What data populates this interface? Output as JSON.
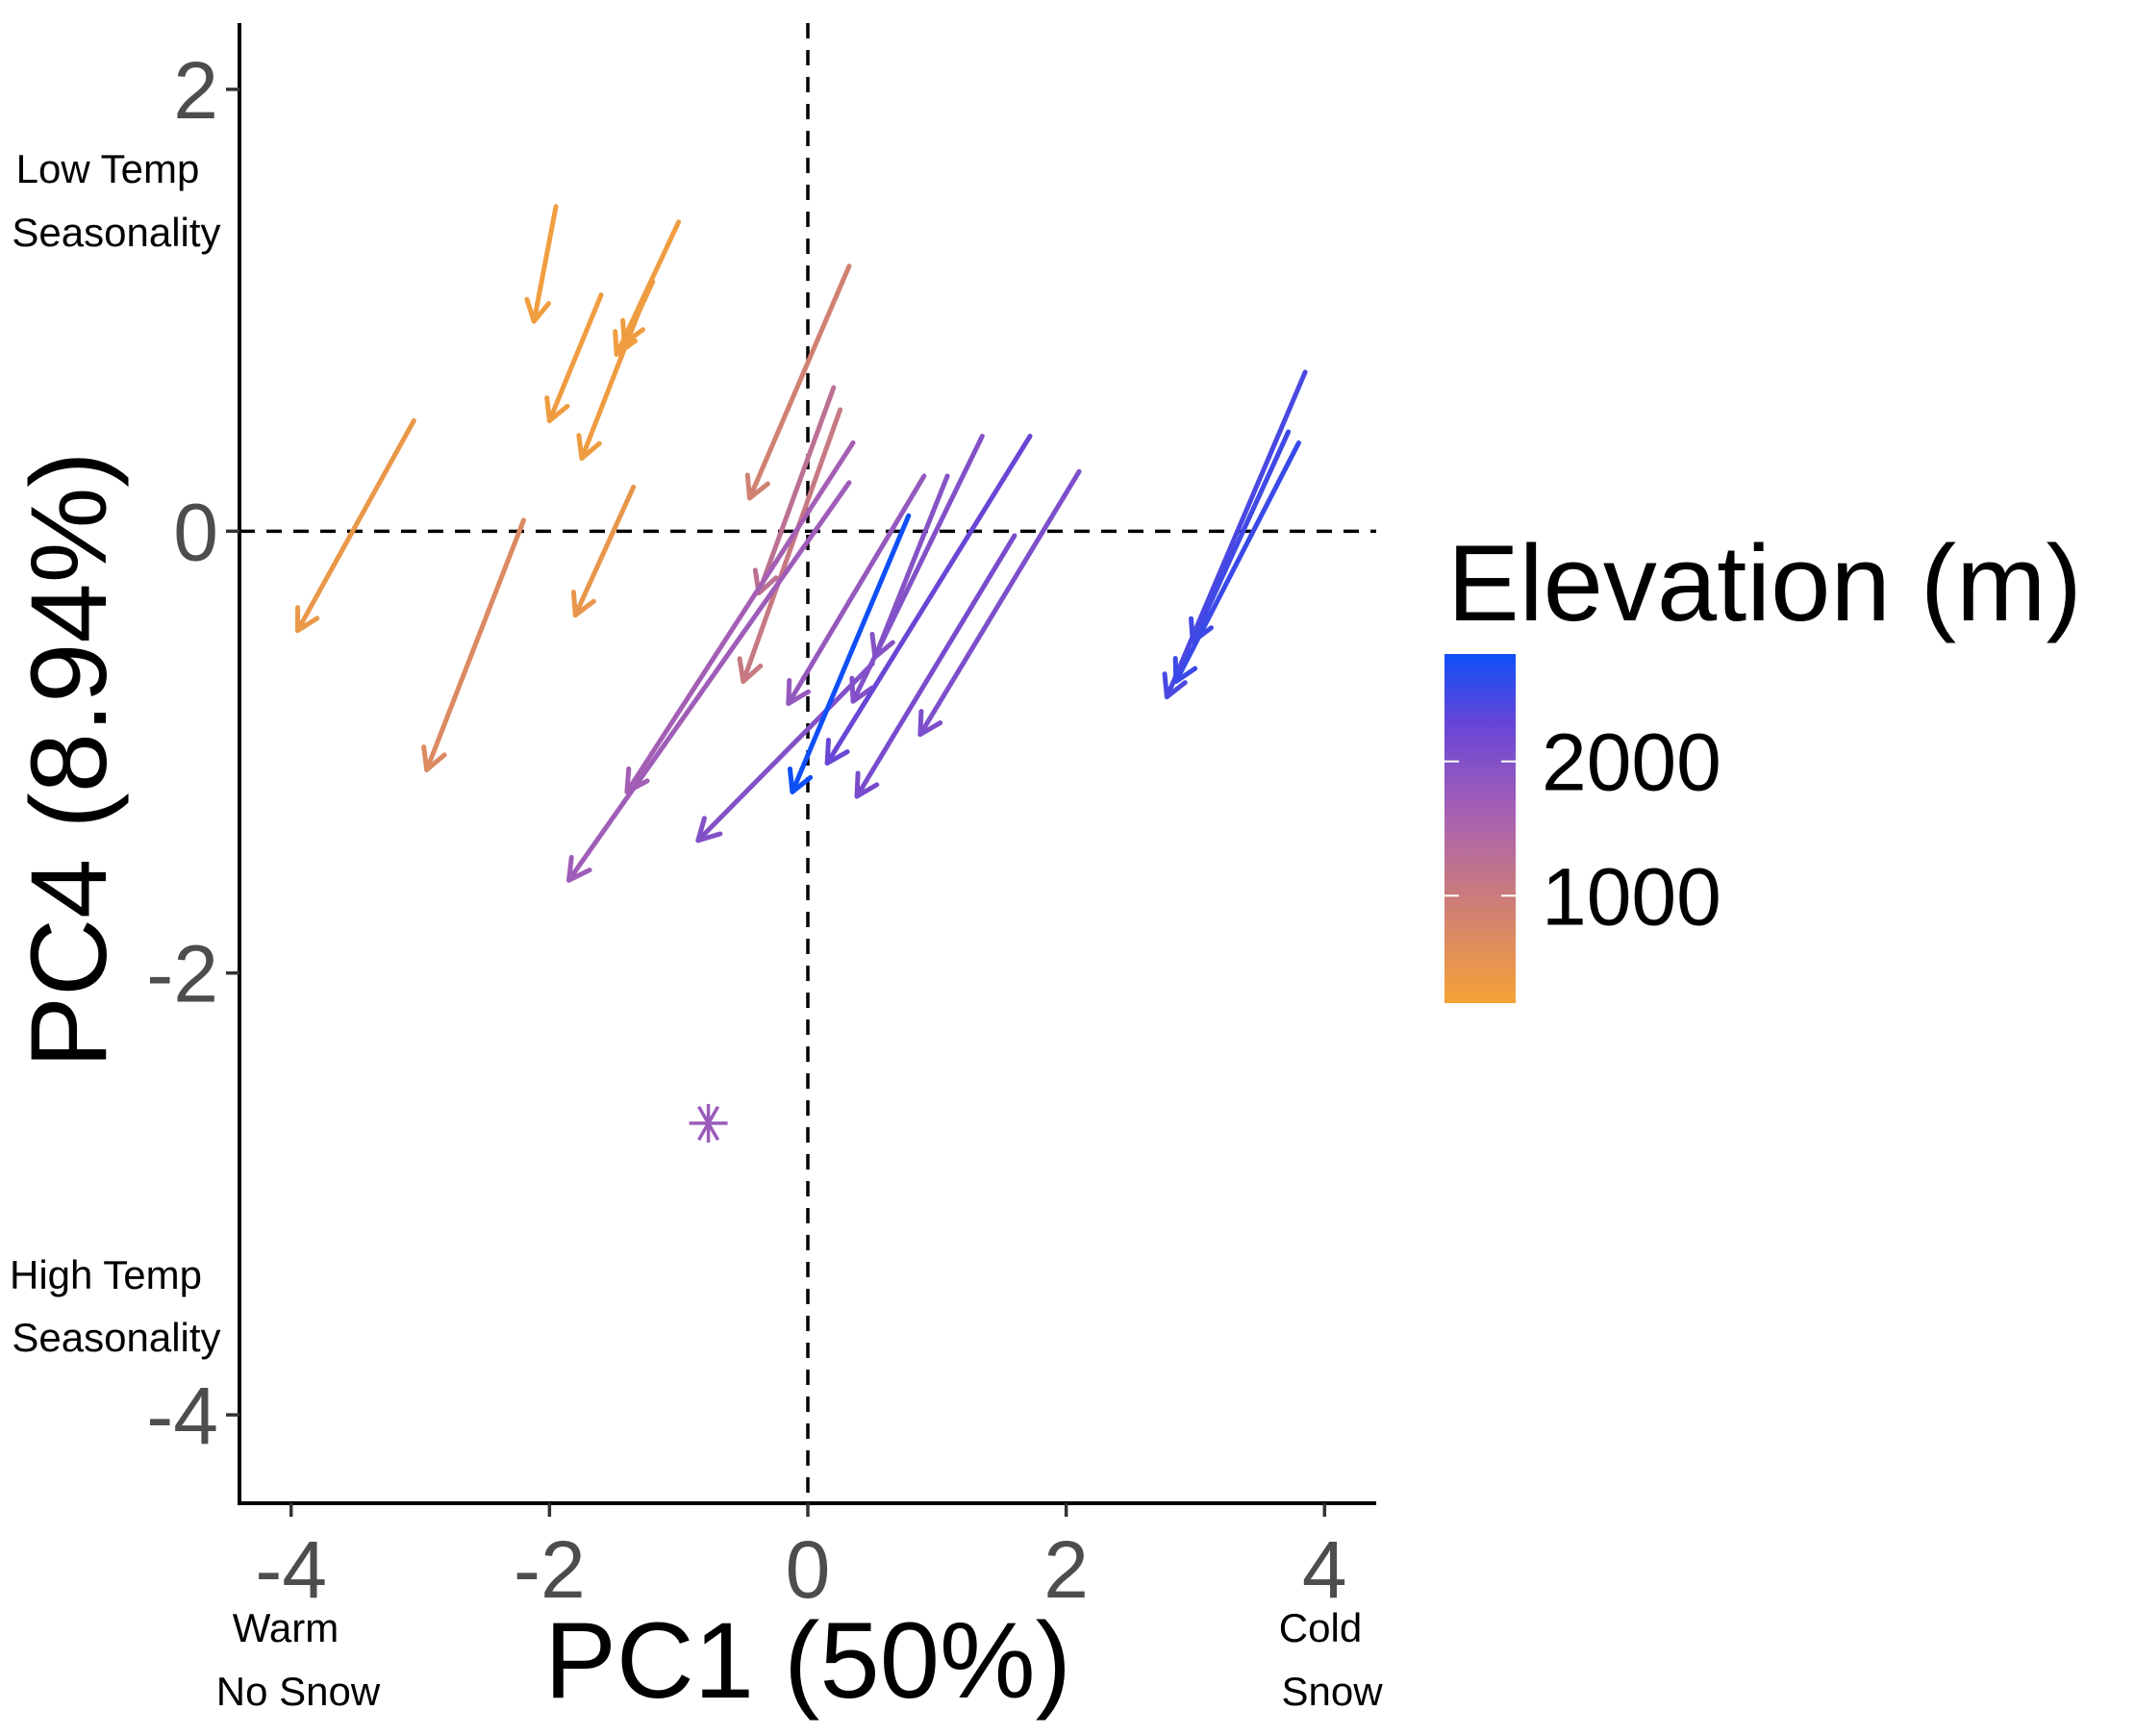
{
  "chart_data": {
    "type": "arrow-scatter",
    "xlabel": "PC1 (50%)",
    "ylabel": "PC4 (8.94%)",
    "xlim": [
      -4.4,
      4.4
    ],
    "ylim": [
      -4.4,
      2.3
    ],
    "x_ticks": [
      -4,
      -2,
      0,
      2,
      4
    ],
    "y_ticks": [
      -4,
      -2,
      0,
      2
    ],
    "reference_lines": {
      "x": 0,
      "y": 0,
      "style": "dashed"
    },
    "annotations": {
      "y_high": [
        "Low Temp",
        "Seasonality"
      ],
      "y_low": [
        "High Temp",
        "Seasonality"
      ],
      "x_low": [
        "Warm",
        "No Snow"
      ],
      "x_high": [
        "Cold",
        "Snow"
      ]
    },
    "legend": {
      "title": "Elevation (m)",
      "type": "colorbar",
      "breaks": [
        2000,
        1000
      ],
      "range": [
        200,
        2800
      ],
      "colors": [
        "#f6a336",
        "#d3826f",
        "#a660b4",
        "#6645d7",
        "#0f4ff7"
      ]
    },
    "arrows": [
      {
        "x0": -1.95,
        "y0": 1.47,
        "x1": -2.12,
        "y1": 0.95,
        "elev": 300
      },
      {
        "x0": -1.0,
        "y0": 1.4,
        "x1": -1.48,
        "y1": 0.8,
        "elev": 320
      },
      {
        "x0": -1.2,
        "y0": 1.13,
        "x1": -1.42,
        "y1": 0.85,
        "elev": 330
      },
      {
        "x0": -1.6,
        "y0": 1.07,
        "x1": -2.0,
        "y1": 0.5,
        "elev": 330
      },
      {
        "x0": -1.27,
        "y0": 1.05,
        "x1": -1.75,
        "y1": 0.33,
        "elev": 330
      },
      {
        "x0": -3.05,
        "y0": 0.5,
        "x1": -3.95,
        "y1": -0.45,
        "elev": 420
      },
      {
        "x0": -1.35,
        "y0": 0.2,
        "x1": -1.8,
        "y1": -0.38,
        "elev": 450
      },
      {
        "x0": -2.2,
        "y0": 0.05,
        "x1": -2.95,
        "y1": -1.08,
        "elev": 700
      },
      {
        "x0": 0.32,
        "y0": 1.2,
        "x1": -0.45,
        "y1": 0.15,
        "elev": 880
      },
      {
        "x0": 0.25,
        "y0": 0.55,
        "x1": -0.5,
        "y1": -0.68,
        "elev": 1050
      },
      {
        "x0": 0.2,
        "y0": 0.65,
        "x1": -0.38,
        "y1": -0.28,
        "elev": 1250
      },
      {
        "x0": 0.35,
        "y0": 0.4,
        "x1": -1.4,
        "y1": -1.18,
        "elev": 1650
      },
      {
        "x0": 0.32,
        "y0": 0.22,
        "x1": -1.85,
        "y1": -1.58,
        "elev": 1700
      },
      {
        "x0": 0.9,
        "y0": 0.25,
        "x1": -0.15,
        "y1": -0.78,
        "elev": 1800
      },
      {
        "x0": 1.08,
        "y0": 0.25,
        "x1": 0.52,
        "y1": -0.57,
        "elev": 1950
      },
      {
        "x0": 1.35,
        "y0": 0.43,
        "x1": 0.35,
        "y1": -0.77,
        "elev": 2000
      },
      {
        "x0": 0.5,
        "y0": -0.6,
        "x1": -0.85,
        "y1": -1.4,
        "elev": 2000
      },
      {
        "x0": 2.1,
        "y0": 0.27,
        "x1": 0.87,
        "y1": -0.92,
        "elev": 2050
      },
      {
        "x0": 1.6,
        "y0": -0.02,
        "x1": 0.38,
        "y1": -1.2,
        "elev": 2100
      },
      {
        "x0": 1.72,
        "y0": 0.43,
        "x1": 0.15,
        "y1": -1.05,
        "elev": 2250
      },
      {
        "x0": 3.85,
        "y0": 0.72,
        "x1": 2.78,
        "y1": -0.75,
        "elev": 2450
      },
      {
        "x0": 3.72,
        "y0": 0.45,
        "x1": 2.98,
        "y1": -0.5,
        "elev": 2500
      },
      {
        "x0": 3.8,
        "y0": 0.4,
        "x1": 2.85,
        "y1": -0.68,
        "elev": 2550
      },
      {
        "x0": 0.78,
        "y0": 0.07,
        "x1": -0.12,
        "y1": -1.18,
        "elev": 2800
      }
    ],
    "points": [
      {
        "x": -0.77,
        "y": -2.68,
        "marker": "asterisk",
        "elev": 1750
      }
    ]
  }
}
